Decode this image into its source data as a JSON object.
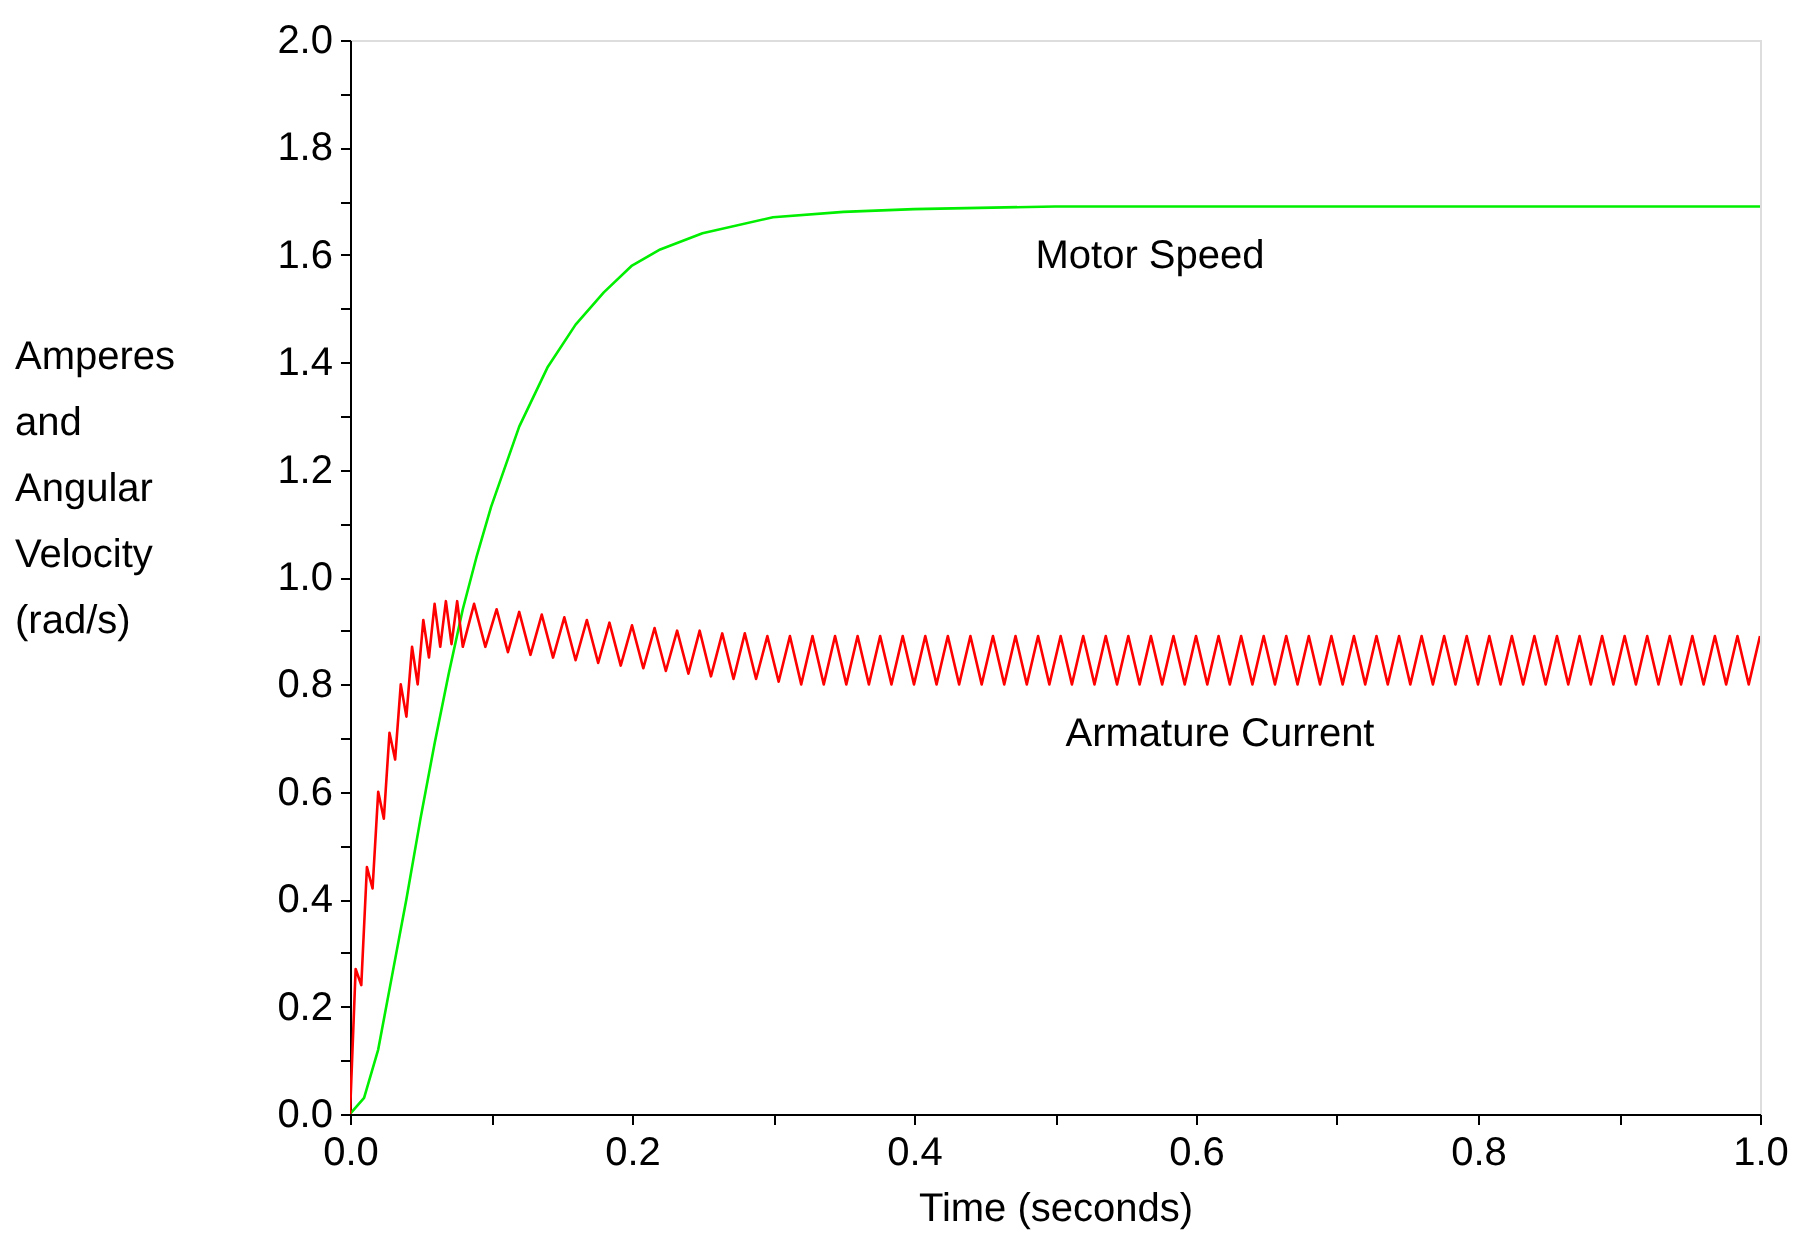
{
  "chart_data": {
    "type": "line",
    "xlabel": "Time (seconds)",
    "ylabel": "Amperes and Angular Velocity (rad/s)",
    "xlim": [
      0,
      1.0
    ],
    "ylim": [
      0,
      2.0
    ],
    "xticks": [
      {
        "value": 0,
        "label": "0.0"
      },
      {
        "value": 0.1,
        "label": null
      },
      0.2,
      {
        "value": 0.3,
        "label": null
      },
      0.4,
      {
        "value": 0.5,
        "label": null
      },
      0.6,
      {
        "value": 0.7,
        "label": null
      },
      0.8,
      {
        "value": 0.9,
        "label": null
      },
      {
        "value": 1.0,
        "label": "1.0"
      }
    ],
    "yticks": [
      {
        "value": 0,
        "label": "0.0"
      },
      {
        "value": 0.1,
        "label": null
      },
      0.2,
      {
        "value": 0.3,
        "label": null
      },
      0.4,
      {
        "value": 0.5,
        "label": null
      },
      0.6,
      {
        "value": 0.7,
        "label": null
      },
      0.8,
      {
        "value": 0.9,
        "label": null
      },
      {
        "value": 1.0,
        "label": "1.0"
      },
      {
        "value": 1.1,
        "label": null
      },
      1.2,
      {
        "value": 1.3,
        "label": null
      },
      1.4,
      {
        "value": 1.5,
        "label": null
      },
      1.6,
      {
        "value": 1.7,
        "label": null
      },
      1.8,
      {
        "value": 1.9,
        "label": null
      },
      {
        "value": 2.0,
        "label": "2.0"
      }
    ],
    "grid": false,
    "marker": "none",
    "line_style": "solid",
    "series": [
      {
        "color": "#00ee00",
        "x": [
          0,
          0.01,
          0.02,
          0.03,
          0.04,
          0.05,
          0.06,
          0.07,
          0.08,
          0.09,
          0.1,
          0.12,
          0.14,
          0.16,
          0.18,
          0.2,
          0.22,
          0.25,
          0.3,
          0.35,
          0.4,
          0.5,
          0.6,
          1.0
        ],
        "values": [
          0,
          0.03,
          0.12,
          0.26,
          0.4,
          0.55,
          0.69,
          0.82,
          0.94,
          1.04,
          1.13,
          1.28,
          1.39,
          1.47,
          1.53,
          1.58,
          1.61,
          1.64,
          1.67,
          1.68,
          1.685,
          1.69,
          1.69,
          1.69
        ]
      },
      {
        "color": "#ff0000",
        "x": [
          0,
          0.004,
          0.008,
          0.012,
          0.016,
          0.02,
          0.024,
          0.028,
          0.032,
          0.036,
          0.04,
          0.044,
          0.048,
          0.052,
          0.056,
          0.06,
          0.064,
          0.068,
          0.072,
          0.076,
          0.08,
          0.088,
          0.096,
          0.104,
          0.112,
          0.12,
          0.128,
          0.136,
          0.144,
          0.152,
          0.16,
          0.168,
          0.176,
          0.184,
          0.192,
          0.2,
          0.208,
          0.216,
          0.224,
          0.232,
          0.24,
          0.248,
          0.256,
          0.264,
          0.272,
          0.28,
          0.288,
          0.296,
          0.304,
          0.312,
          0.32,
          0.328,
          0.336,
          0.344,
          0.352,
          0.36,
          0.368,
          0.376,
          0.384,
          0.392,
          0.4,
          0.408,
          0.416,
          0.424,
          0.432,
          0.44,
          0.448,
          0.456,
          0.464,
          0.472,
          0.48,
          0.488,
          0.496,
          0.504,
          0.512,
          0.52,
          0.528,
          0.536,
          0.544,
          0.552,
          0.56,
          0.568,
          0.576,
          0.584,
          0.592,
          0.6,
          0.608,
          0.616,
          0.624,
          0.632,
          0.64,
          0.648,
          0.656,
          0.664,
          0.672,
          0.68,
          0.688,
          0.696,
          0.704,
          0.712,
          0.72,
          0.728,
          0.736,
          0.744,
          0.752,
          0.76,
          0.768,
          0.776,
          0.784,
          0.792,
          0.8,
          0.808,
          0.816,
          0.824,
          0.832,
          0.84,
          0.848,
          0.856,
          0.864,
          0.872,
          0.88,
          0.888,
          0.896,
          0.904,
          0.912,
          0.92,
          0.928,
          0.936,
          0.944,
          0.952,
          0.96,
          0.968,
          0.976,
          0.984,
          0.992,
          1.0
        ],
        "values": [
          0,
          0.27,
          0.24,
          0.46,
          0.42,
          0.6,
          0.55,
          0.71,
          0.66,
          0.8,
          0.74,
          0.87,
          0.8,
          0.92,
          0.85,
          0.95,
          0.87,
          0.955,
          0.875,
          0.955,
          0.87,
          0.95,
          0.87,
          0.94,
          0.86,
          0.935,
          0.855,
          0.93,
          0.85,
          0.925,
          0.845,
          0.92,
          0.84,
          0.915,
          0.835,
          0.91,
          0.83,
          0.905,
          0.825,
          0.9,
          0.82,
          0.9,
          0.815,
          0.895,
          0.81,
          0.895,
          0.81,
          0.89,
          0.805,
          0.89,
          0.8,
          0.89,
          0.8,
          0.89,
          0.8,
          0.89,
          0.8,
          0.89,
          0.8,
          0.89,
          0.8,
          0.89,
          0.8,
          0.89,
          0.8,
          0.89,
          0.8,
          0.89,
          0.8,
          0.89,
          0.8,
          0.89,
          0.8,
          0.89,
          0.8,
          0.89,
          0.8,
          0.89,
          0.8,
          0.89,
          0.8,
          0.89,
          0.8,
          0.89,
          0.8,
          0.89,
          0.8,
          0.89,
          0.8,
          0.89,
          0.8,
          0.89,
          0.8,
          0.89,
          0.8,
          0.89,
          0.8,
          0.89,
          0.8,
          0.89,
          0.8,
          0.89,
          0.8,
          0.89,
          0.8,
          0.89,
          0.8,
          0.89,
          0.8,
          0.89,
          0.8,
          0.89,
          0.8,
          0.89,
          0.8,
          0.89,
          0.8,
          0.89,
          0.8,
          0.89,
          0.8,
          0.89,
          0.8,
          0.89,
          0.8,
          0.89,
          0.8,
          0.89,
          0.8,
          0.89,
          0.8,
          0.89,
          0.8,
          0.89,
          0.8,
          0.89
        ]
      }
    ],
    "annotations": [
      "Motor Speed",
      "Armature Current"
    ]
  }
}
